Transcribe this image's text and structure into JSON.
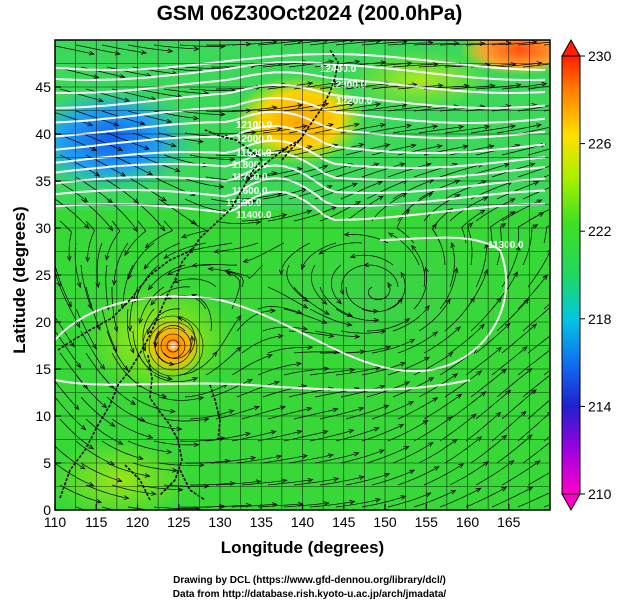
{
  "title": "GSM 06Z30Oct2024 (200.0hPa)",
  "xlabel": "Longitude (degrees)",
  "ylabel": "Latitude  (degrees)",
  "credits": {
    "line1": "Drawing by DCL (https://www.gfd-dennou.org/library/dcl/)",
    "line2": "Data from http://database.rish.kyoto-u.ac.jp/arch/jmadata/"
  },
  "map": {
    "x_ticks": [
      110,
      115,
      120,
      125,
      130,
      135,
      140,
      145,
      150,
      155,
      160,
      165
    ],
    "y_ticks": [
      0,
      5,
      10,
      15,
      20,
      25,
      30,
      35,
      40,
      45
    ],
    "x_range": [
      110,
      170
    ],
    "y_range": [
      0,
      50
    ],
    "colorbar": {
      "ticks": [
        210,
        214,
        218,
        222,
        226,
        230
      ],
      "min": 210,
      "max": 230
    },
    "contour_labels": [
      "12400.0",
      "12300.0",
      "12200.0",
      "12100.0",
      "12000.0",
      "11900.0",
      "11800.0",
      "11700.0",
      "11600.0",
      "11500.0",
      "11400.0",
      "11300.0"
    ]
  }
}
